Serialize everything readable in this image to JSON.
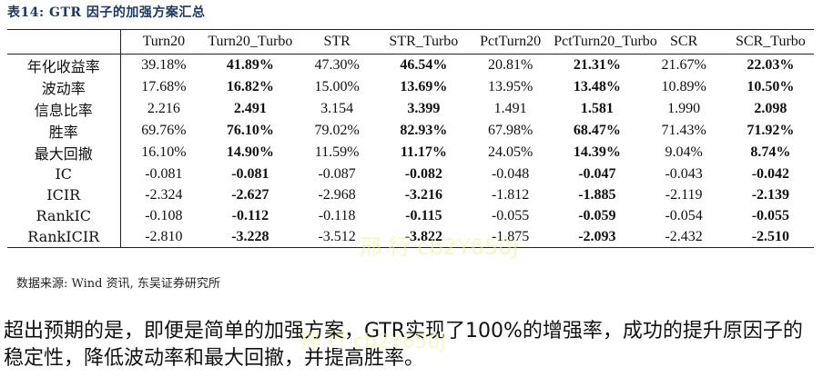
{
  "caption": "表14: GTR 因子的加强方案汇总",
  "table": {
    "corner": "",
    "columns": [
      "Turn20",
      "Turn20_Turbo",
      "STR",
      "STR_Turbo",
      "PctTurn20",
      "PctTurn20_Turbo",
      "SCR",
      "SCR_Turbo"
    ],
    "rows": [
      {
        "label": "年化收益率",
        "values": [
          "39.18%",
          "41.89%",
          "47.30%",
          "46.54%",
          "20.81%",
          "21.31%",
          "21.67%",
          "22.03%"
        ]
      },
      {
        "label": "波动率",
        "values": [
          "17.68%",
          "16.82%",
          "15.00%",
          "13.69%",
          "13.95%",
          "13.48%",
          "10.89%",
          "10.50%"
        ]
      },
      {
        "label": "信息比率",
        "values": [
          "2.216",
          "2.491",
          "3.154",
          "3.399",
          "1.491",
          "1.581",
          "1.990",
          "2.098"
        ]
      },
      {
        "label": "胜率",
        "values": [
          "69.76%",
          "76.10%",
          "79.02%",
          "82.93%",
          "67.98%",
          "68.47%",
          "71.43%",
          "71.92%"
        ]
      },
      {
        "label": "最大回撤",
        "values": [
          "16.10%",
          "14.90%",
          "11.59%",
          "11.17%",
          "24.05%",
          "14.39%",
          "9.04%",
          "8.74%"
        ]
      },
      {
        "label": "IC",
        "values": [
          "-0.081",
          "-0.081",
          "-0.087",
          "-0.082",
          "-0.048",
          "-0.047",
          "-0.043",
          "-0.042"
        ]
      },
      {
        "label": "ICIR",
        "values": [
          "-2.324",
          "-2.627",
          "-2.968",
          "-3.216",
          "-1.812",
          "-1.885",
          "-2.119",
          "-2.139"
        ]
      },
      {
        "label": "RankIC",
        "values": [
          "-0.108",
          "-0.112",
          "-0.118",
          "-0.115",
          "-0.055",
          "-0.059",
          "-0.054",
          "-0.055"
        ]
      },
      {
        "label": "RankICIR",
        "values": [
          "-2.810",
          "-3.228",
          "-3.512",
          "-3.822",
          "-1.875",
          "-2.093",
          "-2.432",
          "-2.510"
        ]
      }
    ],
    "bold_columns": [
      1,
      3,
      5,
      7
    ]
  },
  "source": "数据来源: Wind 资讯, 东吴证券研究所",
  "summary": "超出预期的是，即便是简单的加强方案，GTR实现了100%的增强率，成功的提升原因子的稳定性，降低波动率和最大回撤，并提高胜率。",
  "watermark": {
    "text1": "邢 行 cb2Y650J",
    "text2": "邢 行 cb2Y650J",
    "color": "#f2f29a"
  }
}
